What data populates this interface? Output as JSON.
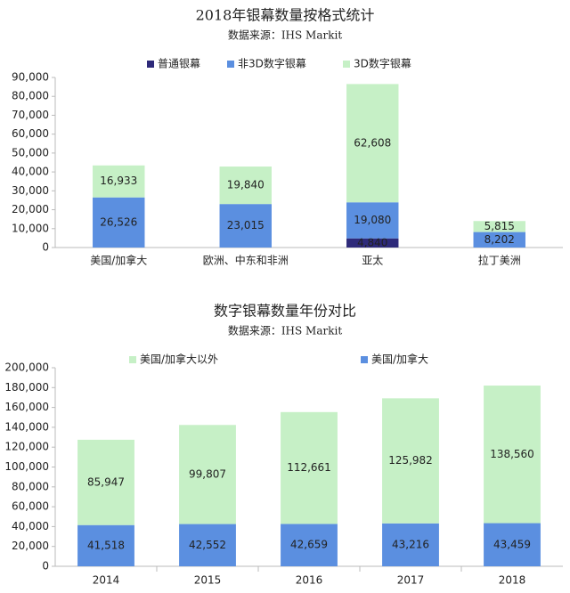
{
  "chart_data": [
    {
      "type": "bar",
      "stacked": true,
      "title": "2018年银幕数量按格式统计",
      "subtitle": "数据来源：IHS Markit",
      "categories": [
        "美国/加拿大",
        "欧洲、中东和非洲",
        "亚太",
        "拉丁美洲"
      ],
      "series": [
        {
          "name": "普通银幕",
          "color": "#2e2a7a",
          "values": [
            null,
            null,
            4840,
            null
          ],
          "value_labels": [
            null,
            null,
            "4,840",
            null
          ]
        },
        {
          "name": "非3D数字银幕",
          "color": "#5b8fe0",
          "values": [
            26526,
            23015,
            19080,
            8202
          ],
          "value_labels": [
            "26,526",
            "23,015",
            "19,080",
            "8,202"
          ]
        },
        {
          "name": "3D数字银幕",
          "color": "#c6f0c6",
          "values": [
            16933,
            19840,
            62608,
            5815
          ],
          "value_labels": [
            "16,933",
            "19,840",
            "62,608",
            "5,815"
          ]
        }
      ],
      "ylim": [
        0,
        90000
      ],
      "yticks": [
        0,
        {
          "value": 10000,
          "label": "10,000"
        },
        {
          "value": 20000,
          "label": "20,000"
        },
        {
          "value": 30000,
          "label": "30,000"
        },
        {
          "value": 40000,
          "label": "40,000"
        },
        {
          "value": 50000,
          "label": "50,000"
        },
        {
          "value": 60000,
          "label": "60,000"
        },
        {
          "value": 70000,
          "label": "70,000"
        },
        {
          "value": 80000,
          "label": "80,000"
        },
        {
          "value": 90000,
          "label": "90,000"
        }
      ],
      "grid": false
    },
    {
      "type": "bar",
      "stacked": true,
      "title": "数字银幕数量年份对比",
      "subtitle": "数据来源：IHS Markit",
      "categories": [
        "2014",
        "2015",
        "2016",
        "2017",
        "2018"
      ],
      "series": [
        {
          "name": "美国/加拿大以外",
          "color": "#c6f0c6",
          "values": [
            85947,
            99807,
            112661,
            125982,
            138560
          ],
          "value_labels": [
            "85,947",
            "99,807",
            "112,661",
            "125,982",
            "138,560"
          ]
        },
        {
          "name": "美国/加拿大",
          "color": "#5b8fe0",
          "values": [
            41518,
            42552,
            42659,
            43216,
            43459
          ],
          "value_labels": [
            "41,518",
            "42,552",
            "42,659",
            "43,216",
            "43,459"
          ]
        }
      ],
      "ylim": [
        0,
        200000
      ],
      "yticks": [
        0,
        {
          "value": 20000,
          "label": "20,000"
        },
        {
          "value": 40000,
          "label": "40,000"
        },
        {
          "value": 60000,
          "label": "60,000"
        },
        {
          "value": 80000,
          "label": "80,000"
        },
        {
          "value": 100000,
          "label": "100,000"
        },
        {
          "value": 120000,
          "label": "120,000"
        },
        {
          "value": 140000,
          "label": "140,000"
        },
        {
          "value": 160000,
          "label": "160,000"
        },
        {
          "value": 180000,
          "label": "180,000"
        },
        {
          "value": 200000,
          "label": "200,000"
        }
      ],
      "grid": false
    }
  ]
}
